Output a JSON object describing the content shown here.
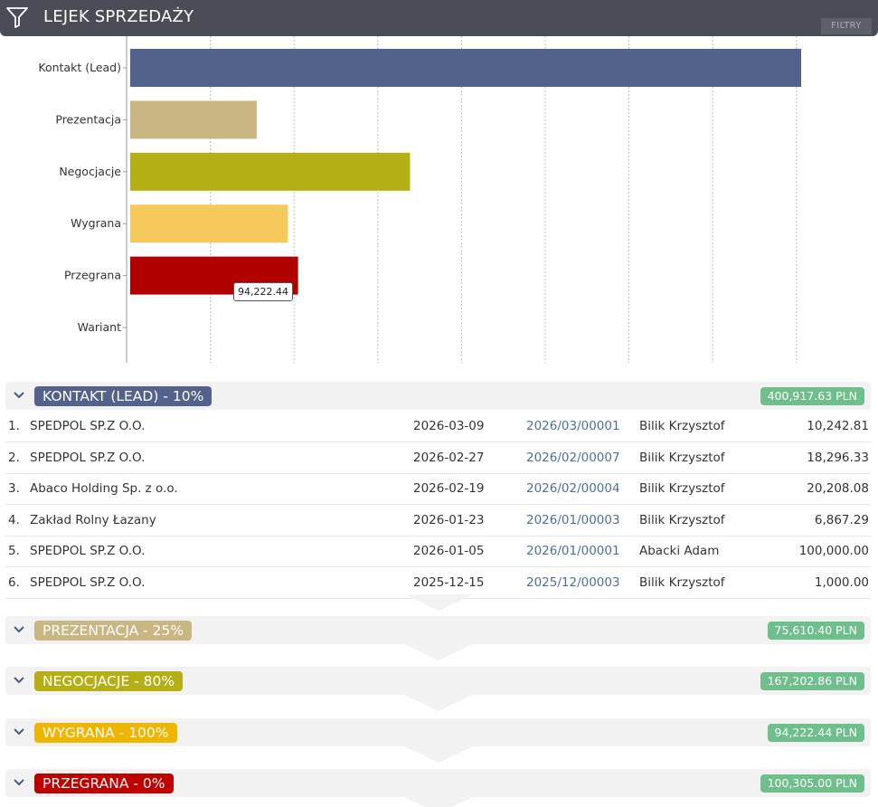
{
  "header": {
    "title": "LEJEK SPRZEDAŻY",
    "filters_label": "FILTRY"
  },
  "chart_data": {
    "type": "bar",
    "orientation": "horizontal",
    "categories": [
      "Kontakt (Lead)",
      "Prezentacja",
      "Negocjacje",
      "Wygrana",
      "Przegrana",
      "Wariant"
    ],
    "values": [
      400917.63,
      75610.4,
      167202.86,
      94222.44,
      100305.0,
      0
    ],
    "colors": [
      "#53628d",
      "#c8b783",
      "#b3af15",
      "#f6c95d",
      "#b00000",
      "#cccccc"
    ],
    "xlim": [
      0,
      450000
    ],
    "grid": true,
    "tooltip": "94,222.44"
  },
  "sections": [
    {
      "stage": "KONTAKT (LEAD) - 10%",
      "color": "#53628d",
      "total": "400,917.63 PLN",
      "rows": [
        {
          "num": "1.",
          "company": "SPEDPOL SP.Z O.O.",
          "date": "2026-03-09",
          "doc": "2026/03/00001",
          "person": "Bilik Krzysztof",
          "amount": "10,242.81"
        },
        {
          "num": "2.",
          "company": "SPEDPOL SP.Z O.O.",
          "date": "2026-02-27",
          "doc": "2026/02/00007",
          "person": "Bilik Krzysztof",
          "amount": "18,296.33"
        },
        {
          "num": "3.",
          "company": "Abaco Holding Sp. z o.o.",
          "date": "2026-02-19",
          "doc": "2026/02/00004",
          "person": "Bilik Krzysztof",
          "amount": "20,208.08"
        },
        {
          "num": "4.",
          "company": "Zakład Rolny Łazany",
          "date": "2026-01-23",
          "doc": "2026/01/00003",
          "person": "Bilik Krzysztof",
          "amount": "6,867.29"
        },
        {
          "num": "5.",
          "company": "SPEDPOL SP.Z O.O.",
          "date": "2026-01-05",
          "doc": "2026/01/00001",
          "person": "Abacki Adam",
          "amount": "100,000.00"
        },
        {
          "num": "6.",
          "company": "SPEDPOL SP.Z O.O.",
          "date": "2025-12-15",
          "doc": "2025/12/00003",
          "person": "Bilik Krzysztof",
          "amount": "1,000.00"
        }
      ]
    },
    {
      "stage": "PREZENTACJA - 25%",
      "color": "#c8b783",
      "total": "75,610.40 PLN"
    },
    {
      "stage": "NEGOCJACJE - 80%",
      "color": "#b3af15",
      "total": "167,202.86 PLN"
    },
    {
      "stage": "WYGRANA - 100%",
      "color": "#f0b500",
      "total": "94,222.44 PLN"
    },
    {
      "stage": "PRZEGRANA - 0%",
      "color": "#c00000",
      "total": "100,305.00 PLN"
    }
  ]
}
